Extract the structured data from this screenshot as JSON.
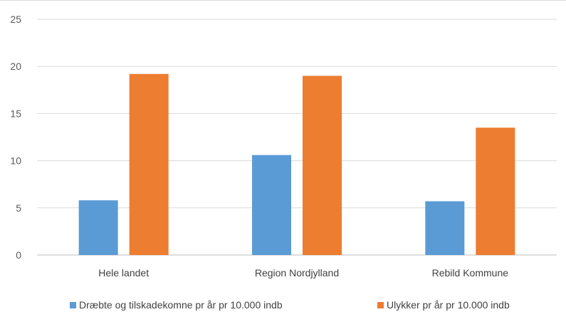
{
  "chart_data": {
    "type": "bar",
    "categories": [
      "Hele landet",
      "Region Nordjylland",
      "Rebild Kommune"
    ],
    "series": [
      {
        "name": "Dræbte og tilskadekomne pr år pr 10.000 indb",
        "color": "#5b9bd5",
        "values": [
          5.8,
          10.6,
          5.7
        ]
      },
      {
        "name": "Ulykker pr år pr 10.000 indb",
        "color": "#ed7d31",
        "values": [
          19.2,
          19.0,
          13.5
        ]
      }
    ],
    "ylim": [
      0,
      25
    ],
    "yticks": [
      "0",
      "5",
      "10",
      "15",
      "20",
      "25"
    ],
    "grid": true,
    "legend": "bottom",
    "title": "",
    "xlabel": "",
    "ylabel": ""
  }
}
